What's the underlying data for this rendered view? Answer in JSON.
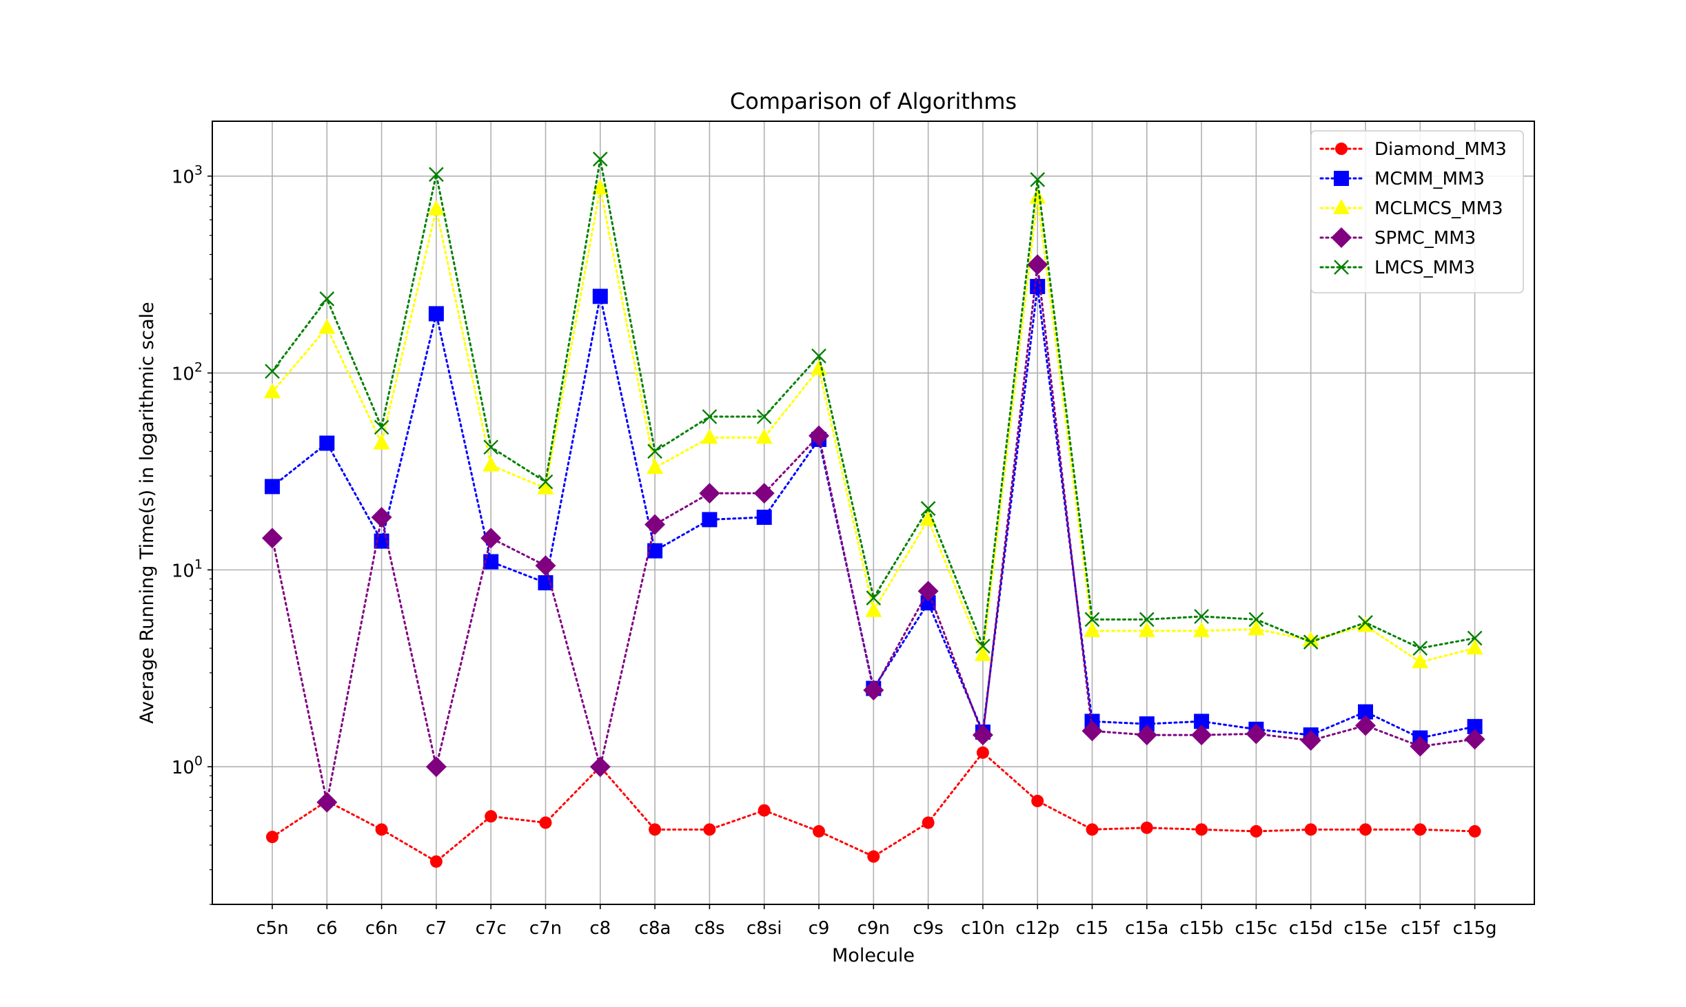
{
  "chart_data": {
    "type": "line",
    "title": "Comparison of Algorithms",
    "xlabel": "Molecule",
    "ylabel": "Average Running Time(s) in logarithmic scale",
    "yscale": "log",
    "ylim": [
      0.2,
      1900
    ],
    "yticks": [
      {
        "value": 1,
        "base": "10",
        "exp": "0"
      },
      {
        "value": 10,
        "base": "10",
        "exp": "1"
      },
      {
        "value": 100,
        "base": "10",
        "exp": "2"
      },
      {
        "value": 1000,
        "base": "10",
        "exp": "3"
      }
    ],
    "grid": true,
    "legend": "top-right",
    "categories": [
      "c5n",
      "c6",
      "c6n",
      "c7",
      "c7c",
      "c7n",
      "c8",
      "c8a",
      "c8s",
      "c8si",
      "c9",
      "c9n",
      "c9s",
      "c10n",
      "c12p",
      "c15",
      "c15a",
      "c15b",
      "c15c",
      "c15d",
      "c15e",
      "c15f",
      "c15g"
    ],
    "series": [
      {
        "name": "Diamond_MM3",
        "color": "#ff0000",
        "marker": "circle",
        "values": [
          0.44,
          0.67,
          0.48,
          0.33,
          0.56,
          0.52,
          1.0,
          0.48,
          0.48,
          0.6,
          0.47,
          0.35,
          0.52,
          1.18,
          0.67,
          0.48,
          0.49,
          0.48,
          0.47,
          0.48,
          0.48,
          0.48,
          0.47
        ]
      },
      {
        "name": "MCMM_MM3",
        "color": "#0000ff",
        "marker": "square",
        "values": [
          26.5,
          44,
          14,
          200,
          11,
          8.6,
          245,
          12.5,
          18,
          18.5,
          46,
          2.5,
          6.8,
          1.5,
          275,
          1.7,
          1.65,
          1.7,
          1.55,
          1.45,
          1.9,
          1.4,
          1.6
        ]
      },
      {
        "name": "MCLMCS_MM3",
        "color": "#ffff00",
        "marker": "triangle",
        "values": [
          80,
          170,
          44,
          680,
          34,
          26,
          870,
          33,
          47,
          47,
          105,
          6.2,
          18,
          3.7,
          780,
          4.9,
          4.9,
          4.9,
          5.0,
          4.4,
          5.2,
          3.4,
          4.0
        ]
      },
      {
        "name": "SPMC_MM3",
        "color": "#800080",
        "marker": "diamond",
        "values": [
          14.5,
          0.66,
          18.5,
          1.0,
          14.5,
          10.5,
          1.0,
          17,
          24.5,
          24.5,
          48,
          2.45,
          7.8,
          1.45,
          355,
          1.52,
          1.45,
          1.45,
          1.47,
          1.36,
          1.62,
          1.27,
          1.38
        ]
      },
      {
        "name": "LMCS_MM3",
        "color": "#008000",
        "marker": "x",
        "values": [
          102,
          238,
          53,
          1020,
          42,
          28,
          1220,
          40,
          60,
          60,
          122,
          7.2,
          20.5,
          4.1,
          960,
          5.6,
          5.6,
          5.8,
          5.6,
          4.3,
          5.4,
          4.0,
          4.5
        ]
      }
    ]
  }
}
